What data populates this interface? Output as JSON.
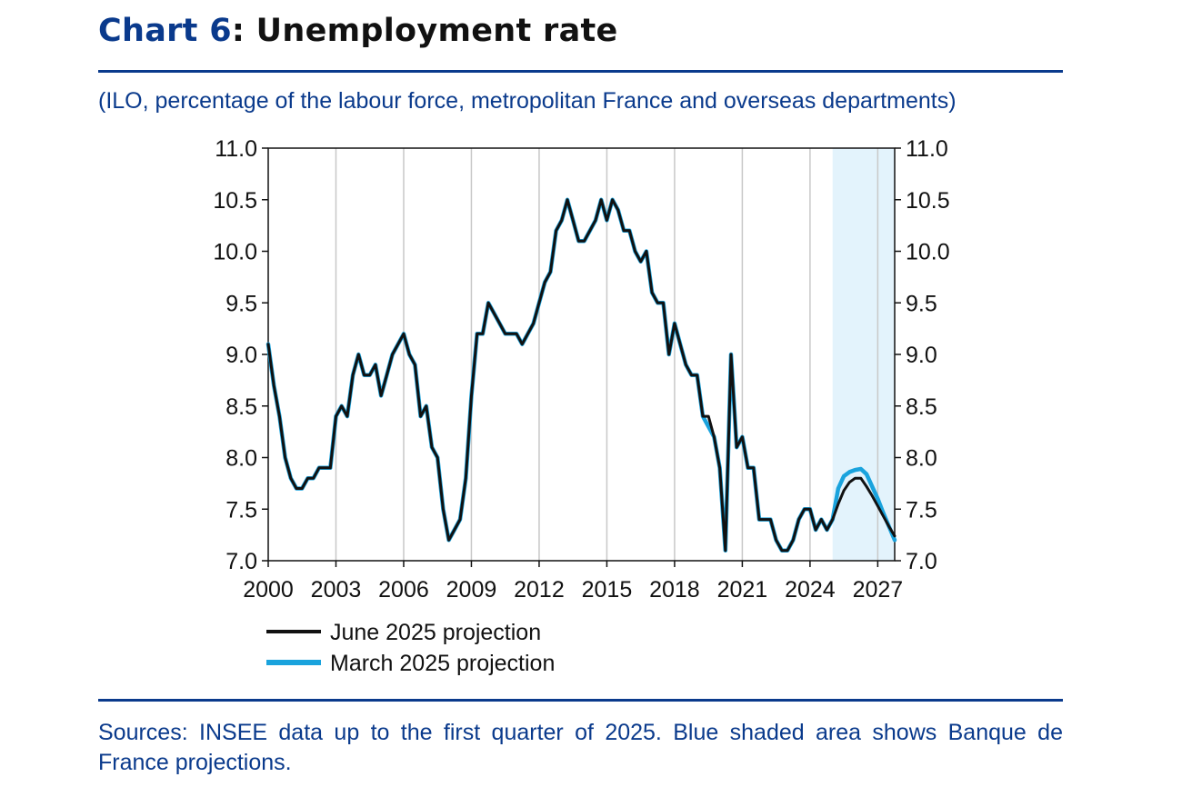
{
  "title": {
    "prefix": "Chart 6",
    "rest": ": Unemployment rate"
  },
  "subtitle": "(ILO, percentage of the labour force, metropolitan France and overseas departments)",
  "source": "Sources: INSEE data up to the first quarter of 2025. Blue shaded area shows Banque de France projections.",
  "colors": {
    "accent": "#0a3a8c",
    "june": "#111111",
    "march": "#1aa3dd",
    "shade": "#e3f3fc",
    "grid": "#c8c8c8"
  },
  "chart_data": {
    "type": "line",
    "xlim": [
      2000,
      2027.75
    ],
    "ylim": [
      7.0,
      11.0
    ],
    "xticks": [
      2000,
      2003,
      2006,
      2009,
      2012,
      2015,
      2018,
      2021,
      2024,
      2027
    ],
    "xtick_labels": [
      "2000",
      "2003",
      "2006",
      "2009",
      "2012",
      "2015",
      "2018",
      "2021",
      "2024",
      "2027"
    ],
    "yticks": [
      "7.0",
      "7.5",
      "8.0",
      "8.5",
      "9.0",
      "9.5",
      "10.0",
      "10.5",
      "11.0"
    ],
    "grid": "vertical",
    "secondary_y_axis": true,
    "projection_shading": {
      "from": 2025.0,
      "to": 2027.75
    },
    "legend_position": "bottom-left",
    "series": [
      {
        "name": "June 2025 projection",
        "color": "#111111",
        "x": [
          2000.0,
          2000.25,
          2000.5,
          2000.75,
          2001.0,
          2001.25,
          2001.5,
          2001.75,
          2002.0,
          2002.25,
          2002.5,
          2002.75,
          2003.0,
          2003.25,
          2003.5,
          2003.75,
          2004.0,
          2004.25,
          2004.5,
          2004.75,
          2005.0,
          2005.25,
          2005.5,
          2005.75,
          2006.0,
          2006.25,
          2006.5,
          2006.75,
          2007.0,
          2007.25,
          2007.5,
          2007.75,
          2008.0,
          2008.25,
          2008.5,
          2008.75,
          2009.0,
          2009.25,
          2009.5,
          2009.75,
          2010.0,
          2010.25,
          2010.5,
          2010.75,
          2011.0,
          2011.25,
          2011.5,
          2011.75,
          2012.0,
          2012.25,
          2012.5,
          2012.75,
          2013.0,
          2013.25,
          2013.5,
          2013.75,
          2014.0,
          2014.25,
          2014.5,
          2014.75,
          2015.0,
          2015.25,
          2015.5,
          2015.75,
          2016.0,
          2016.25,
          2016.5,
          2016.75,
          2017.0,
          2017.25,
          2017.5,
          2017.75,
          2018.0,
          2018.25,
          2018.5,
          2018.75,
          2019.0,
          2019.25,
          2019.5,
          2019.75,
          2020.0,
          2020.25,
          2020.5,
          2020.75,
          2021.0,
          2021.25,
          2021.5,
          2021.75,
          2022.0,
          2022.25,
          2022.5,
          2022.75,
          2023.0,
          2023.25,
          2023.5,
          2023.75,
          2024.0,
          2024.25,
          2024.5,
          2024.75,
          2025.0,
          2025.25,
          2025.5,
          2025.75,
          2026.0,
          2026.25,
          2026.5,
          2026.75,
          2027.0,
          2027.25,
          2027.5,
          2027.75
        ],
        "y": [
          9.1,
          8.7,
          8.4,
          8.0,
          7.8,
          7.7,
          7.7,
          7.8,
          7.8,
          7.9,
          7.9,
          7.9,
          8.4,
          8.5,
          8.4,
          8.8,
          9.0,
          8.8,
          8.8,
          8.9,
          8.6,
          8.8,
          9.0,
          9.1,
          9.2,
          9.0,
          8.9,
          8.4,
          8.5,
          8.1,
          8.0,
          7.5,
          7.2,
          7.3,
          7.4,
          7.8,
          8.6,
          9.2,
          9.2,
          9.5,
          9.4,
          9.3,
          9.2,
          9.2,
          9.2,
          9.1,
          9.2,
          9.3,
          9.5,
          9.7,
          9.8,
          10.2,
          10.3,
          10.5,
          10.3,
          10.1,
          10.1,
          10.2,
          10.3,
          10.5,
          10.3,
          10.5,
          10.4,
          10.2,
          10.2,
          10.0,
          9.9,
          10.0,
          9.6,
          9.5,
          9.5,
          9.0,
          9.3,
          9.1,
          8.9,
          8.8,
          8.8,
          8.4,
          8.4,
          8.2,
          7.9,
          7.1,
          9.0,
          8.1,
          8.2,
          7.9,
          7.9,
          7.4,
          7.4,
          7.4,
          7.2,
          7.1,
          7.1,
          7.2,
          7.4,
          7.5,
          7.5,
          7.3,
          7.4,
          7.3,
          7.4,
          7.55,
          7.68,
          7.76,
          7.8,
          7.8,
          7.72,
          7.63,
          7.53,
          7.43,
          7.33,
          7.24
        ]
      },
      {
        "name": "March 2025 projection",
        "color": "#1aa3dd",
        "x": [
          2000.0,
          2000.25,
          2000.5,
          2000.75,
          2001.0,
          2001.25,
          2001.5,
          2001.75,
          2002.0,
          2002.25,
          2002.5,
          2002.75,
          2003.0,
          2003.25,
          2003.5,
          2003.75,
          2004.0,
          2004.25,
          2004.5,
          2004.75,
          2005.0,
          2005.25,
          2005.5,
          2005.75,
          2006.0,
          2006.25,
          2006.5,
          2006.75,
          2007.0,
          2007.25,
          2007.5,
          2007.75,
          2008.0,
          2008.25,
          2008.5,
          2008.75,
          2009.0,
          2009.25,
          2009.5,
          2009.75,
          2010.0,
          2010.25,
          2010.5,
          2010.75,
          2011.0,
          2011.25,
          2011.5,
          2011.75,
          2012.0,
          2012.25,
          2012.5,
          2012.75,
          2013.0,
          2013.25,
          2013.5,
          2013.75,
          2014.0,
          2014.25,
          2014.5,
          2014.75,
          2015.0,
          2015.25,
          2015.5,
          2015.75,
          2016.0,
          2016.25,
          2016.5,
          2016.75,
          2017.0,
          2017.25,
          2017.5,
          2017.75,
          2018.0,
          2018.25,
          2018.5,
          2018.75,
          2019.0,
          2019.25,
          2019.5,
          2019.75,
          2020.0,
          2020.25,
          2020.5,
          2020.75,
          2021.0,
          2021.25,
          2021.5,
          2021.75,
          2022.0,
          2022.25,
          2022.5,
          2022.75,
          2023.0,
          2023.25,
          2023.5,
          2023.75,
          2024.0,
          2024.25,
          2024.5,
          2024.75,
          2025.0,
          2025.25,
          2025.5,
          2025.75,
          2026.0,
          2026.25,
          2026.5,
          2026.75,
          2027.0,
          2027.25,
          2027.5,
          2027.75
        ],
        "y": [
          9.1,
          8.7,
          8.4,
          8.0,
          7.8,
          7.7,
          7.7,
          7.8,
          7.8,
          7.9,
          7.9,
          7.9,
          8.4,
          8.5,
          8.4,
          8.8,
          9.0,
          8.8,
          8.8,
          8.9,
          8.6,
          8.8,
          9.0,
          9.1,
          9.2,
          9.0,
          8.9,
          8.4,
          8.5,
          8.1,
          8.0,
          7.5,
          7.2,
          7.3,
          7.4,
          7.8,
          8.6,
          9.2,
          9.2,
          9.5,
          9.4,
          9.3,
          9.2,
          9.2,
          9.2,
          9.1,
          9.2,
          9.3,
          9.5,
          9.7,
          9.8,
          10.2,
          10.3,
          10.5,
          10.3,
          10.1,
          10.1,
          10.2,
          10.3,
          10.5,
          10.3,
          10.5,
          10.4,
          10.2,
          10.2,
          10.0,
          9.9,
          10.0,
          9.6,
          9.5,
          9.5,
          9.0,
          9.3,
          9.1,
          8.9,
          8.8,
          8.8,
          8.4,
          8.3,
          8.2,
          7.9,
          7.1,
          9.0,
          8.1,
          8.2,
          7.9,
          7.9,
          7.4,
          7.4,
          7.4,
          7.2,
          7.1,
          7.1,
          7.2,
          7.4,
          7.5,
          7.5,
          7.3,
          7.4,
          7.3,
          7.4,
          7.7,
          7.82,
          7.86,
          7.88,
          7.89,
          7.84,
          7.72,
          7.6,
          7.46,
          7.33,
          7.2
        ]
      }
    ]
  }
}
